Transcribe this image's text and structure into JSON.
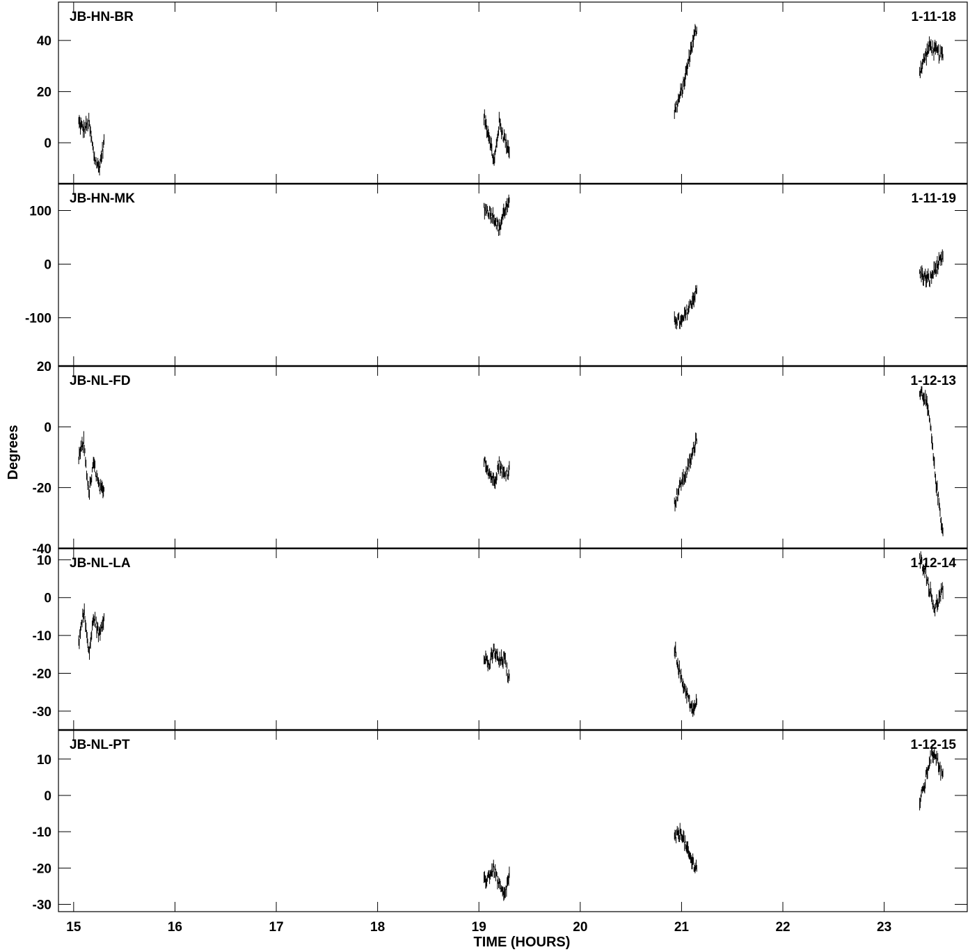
{
  "chart_data": {
    "type": "scatter",
    "xlabel": "TIME (HOURS)",
    "ylabel": "Degrees",
    "xlim": [
      14.85,
      23.82
    ],
    "x_ticks": [
      15,
      16,
      17,
      18,
      19,
      20,
      21,
      22,
      23
    ],
    "x_tick_labels": [
      "15",
      "16",
      "17",
      "18",
      "19",
      "20",
      "21",
      "22",
      "23"
    ],
    "panels": [
      {
        "baseline": "JB-HN-BR",
        "id": "1-11-18",
        "ylim": [
          -16,
          55
        ],
        "y_ticks": [
          0,
          20,
          40
        ],
        "y_tick_labels": [
          "0",
          "20",
          "40"
        ],
        "segments": [
          {
            "x": [
              15.05,
              15.1,
              15.15,
              15.2,
              15.25,
              15.3
            ],
            "y": [
              8,
              5,
              8,
              -5,
              -10,
              0
            ]
          },
          {
            "x": [
              19.05,
              19.1,
              19.15,
              19.2,
              19.25,
              19.3
            ],
            "y": [
              10,
              3,
              -8,
              8,
              2,
              -3
            ]
          },
          {
            "x": [
              20.93,
              21.0,
              21.05,
              21.1,
              21.15
            ],
            "y": [
              12,
              20,
              28,
              38,
              45
            ]
          },
          {
            "x": [
              23.35,
              23.4,
              23.45,
              23.5,
              23.58
            ],
            "y": [
              28,
              33,
              38,
              36,
              34
            ]
          }
        ]
      },
      {
        "baseline": "JB-HN-MK",
        "id": "1-11-19",
        "ylim": [
          -190,
          150
        ],
        "y_ticks": [
          -100,
          0,
          100
        ],
        "y_tick_labels": [
          "-100",
          "0",
          "100"
        ],
        "segments": [
          {
            "x": [
              19.05,
              19.1,
              19.15,
              19.2,
              19.25,
              19.3
            ],
            "y": [
              105,
              98,
              88,
              65,
              100,
              110
            ]
          },
          {
            "x": [
              20.93,
              21.0,
              21.05,
              21.1,
              21.15
            ],
            "y": [
              -100,
              -110,
              -90,
              -70,
              -50
            ]
          },
          {
            "x": [
              23.35,
              23.4,
              23.45,
              23.5,
              23.58
            ],
            "y": [
              -15,
              -25,
              -30,
              -10,
              10
            ]
          }
        ]
      },
      {
        "baseline": "JB-NL-FD",
        "id": "1-12-13",
        "ylim": [
          -40,
          20
        ],
        "y_ticks": [
          -40,
          -20,
          0,
          20
        ],
        "y_tick_labels": [
          "-40",
          "-20",
          "0",
          "20"
        ],
        "segments": [
          {
            "x": [
              15.05,
              15.1,
              15.15,
              15.2,
              15.25,
              15.3
            ],
            "y": [
              -10,
              -5,
              -22,
              -12,
              -20,
              -22
            ]
          },
          {
            "x": [
              19.05,
              19.1,
              19.15,
              19.2,
              19.25,
              19.3
            ],
            "y": [
              -10,
              -15,
              -18,
              -12,
              -16,
              -14
            ]
          },
          {
            "x": [
              20.93,
              21.0,
              21.05,
              21.1,
              21.15
            ],
            "y": [
              -25,
              -18,
              -15,
              -10,
              -3
            ]
          },
          {
            "x": [
              23.35,
              23.4,
              23.45,
              23.5,
              23.58
            ],
            "y": [
              12,
              10,
              2,
              -15,
              -35
            ]
          }
        ]
      },
      {
        "baseline": "JB-NL-LA",
        "id": "1-12-14",
        "ylim": [
          -35,
          13
        ],
        "y_ticks": [
          -30,
          -20,
          -10,
          0,
          10
        ],
        "y_tick_labels": [
          "-30",
          "-20",
          "-10",
          "0",
          "10"
        ],
        "segments": [
          {
            "x": [
              15.05,
              15.1,
              15.15,
              15.2,
              15.25,
              15.3
            ],
            "y": [
              -12,
              -3,
              -15,
              -5,
              -10,
              -5
            ]
          },
          {
            "x": [
              19.05,
              19.1,
              19.15,
              19.2,
              19.25,
              19.3
            ],
            "y": [
              -15,
              -18,
              -14,
              -17,
              -16,
              -22
            ]
          },
          {
            "x": [
              20.93,
              21.0,
              21.05,
              21.1,
              21.15
            ],
            "y": [
              -13,
              -22,
              -25,
              -30,
              -28
            ]
          },
          {
            "x": [
              23.35,
              23.4,
              23.45,
              23.5,
              23.58
            ],
            "y": [
              10,
              8,
              2,
              -3,
              2
            ]
          }
        ]
      },
      {
        "baseline": "JB-NL-PT",
        "id": "1-12-15",
        "ylim": [
          -32,
          18
        ],
        "y_ticks": [
          -30,
          -20,
          -10,
          0,
          10
        ],
        "y_tick_labels": [
          "-30",
          "-20",
          "-10",
          "0",
          "10"
        ],
        "segments": [
          {
            "x": [
              19.05,
              19.1,
              19.15,
              19.2,
              19.25,
              19.3
            ],
            "y": [
              -24,
              -22,
              -20,
              -25,
              -28,
              -22
            ]
          },
          {
            "x": [
              20.93,
              21.0,
              21.05,
              21.1,
              21.15
            ],
            "y": [
              -12,
              -10,
              -15,
              -18,
              -20
            ]
          },
          {
            "x": [
              23.35,
              23.4,
              23.45,
              23.5,
              23.58
            ],
            "y": [
              -2,
              3,
              10,
              12,
              5
            ]
          }
        ]
      }
    ]
  }
}
